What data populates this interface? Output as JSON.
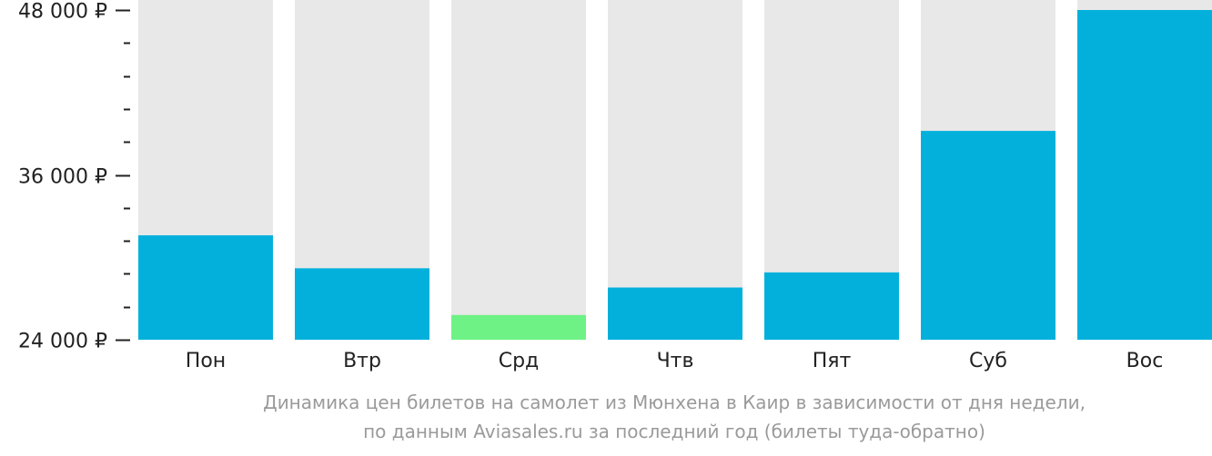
{
  "chart_data": {
    "type": "bar",
    "categories": [
      "Пон",
      "Втр",
      "Срд",
      "Чтв",
      "Пят",
      "Суб",
      "Вос"
    ],
    "values": [
      31600,
      29200,
      25800,
      27800,
      28900,
      39200,
      48000
    ],
    "ylim": [
      24000,
      48000
    ],
    "yticks": [
      {
        "value": 24000,
        "label": "24 000 ₽"
      },
      {
        "value": 36000,
        "label": "36 000 ₽"
      },
      {
        "value": 48000,
        "label": "48 000 ₽"
      }
    ],
    "minor_tick_step": 2400,
    "highlight_index": 2,
    "colors": {
      "bar": "#03b0dc",
      "highlight": "#6ef286",
      "track": "#e8e8e8",
      "axis": "#222222"
    }
  },
  "caption": {
    "line1": "Динамика цен билетов на самолет из Мюнхена в Каир в зависимости от дня недели,",
    "line2": "по данным Aviasales.ru за последний год (билеты туда-обратно)"
  }
}
